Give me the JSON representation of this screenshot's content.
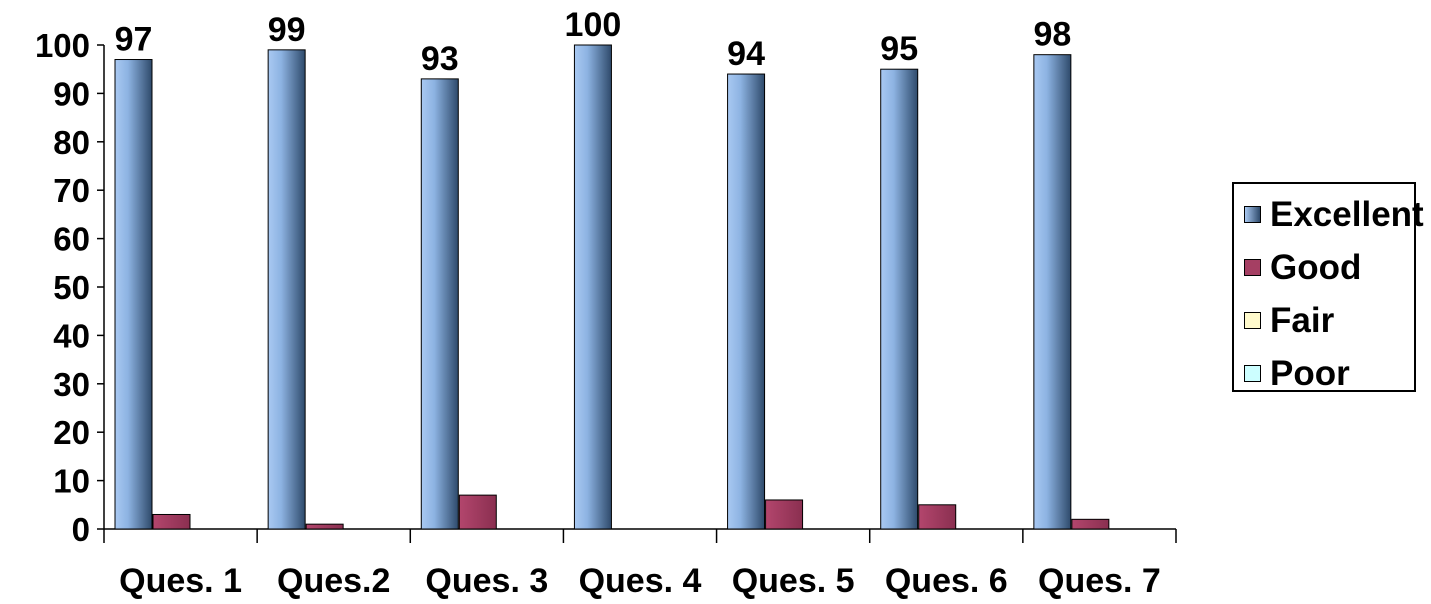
{
  "chart_data": {
    "type": "bar",
    "title": "",
    "xlabel": "",
    "ylabel": "",
    "categories": [
      "Ques. 1",
      "Ques.2",
      "Ques. 3",
      "Ques. 4",
      "Ques. 5",
      "Ques. 6",
      "Ques. 7"
    ],
    "series": [
      {
        "name": "Excellent",
        "values": [
          97,
          99,
          93,
          100,
          94,
          95,
          98
        ],
        "color": "#8fb4e3",
        "data_labels": true
      },
      {
        "name": "Good",
        "values": [
          3,
          1,
          7,
          0,
          6,
          5,
          2
        ],
        "color": "#a53f63",
        "data_labels": false
      },
      {
        "name": "Fair",
        "values": [
          0,
          0,
          0,
          0,
          0,
          0,
          0
        ],
        "color": "#fffacc",
        "data_labels": false
      },
      {
        "name": "Poor",
        "values": [
          0,
          0,
          0,
          0,
          0,
          0,
          0
        ],
        "color": "#ccfeff",
        "data_labels": false
      }
    ],
    "ylim": [
      0,
      100
    ],
    "yticks": [
      0,
      10,
      20,
      30,
      40,
      50,
      60,
      70,
      80,
      90,
      100
    ],
    "grid": false,
    "legend_position": "right",
    "bar_style": "3d-gradient"
  }
}
